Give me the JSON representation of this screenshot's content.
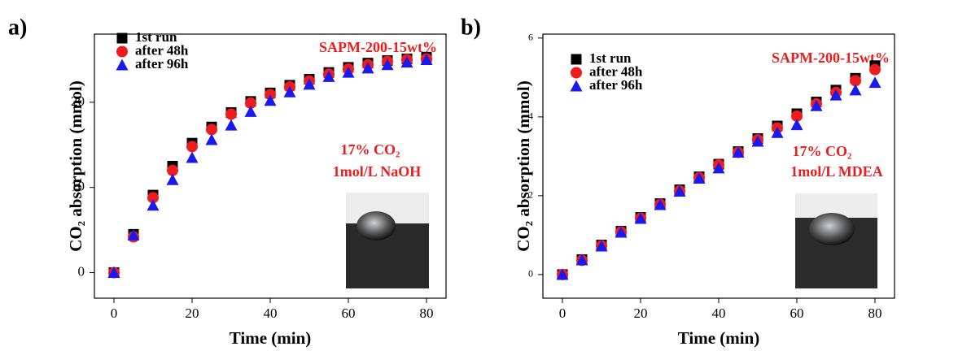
{
  "chart_data": [
    {
      "type": "scatter",
      "panel_label": "a)",
      "x": [
        0,
        5,
        10,
        15,
        20,
        25,
        30,
        35,
        40,
        45,
        50,
        55,
        60,
        65,
        70,
        75,
        80
      ],
      "xlim": [
        -5,
        85
      ],
      "xticks": [
        0,
        20,
        40,
        60,
        80
      ],
      "ylim": [
        -3,
        28
      ],
      "yticks": [
        0,
        10,
        20
      ],
      "x_label": "Time (min)",
      "y_label": "CO₂ absorption (mmol)",
      "annotations": [
        "SAPM-200-15wt%",
        "17% CO₂",
        "1mol/L NaOH"
      ],
      "series": [
        {
          "name": "1st  run",
          "color": "#000000",
          "marker": "square",
          "values": [
            0,
            4.5,
            9.1,
            12.5,
            15.2,
            17.1,
            18.8,
            20.1,
            21.1,
            22.0,
            22.7,
            23.5,
            24.1,
            24.6,
            24.9,
            25.1,
            25.3
          ]
        },
        {
          "name": "after  48h",
          "color": "#ee1c1c",
          "marker": "circle",
          "values": [
            0,
            4.2,
            8.8,
            12.0,
            14.8,
            16.8,
            18.6,
            19.9,
            20.9,
            21.8,
            22.5,
            23.3,
            23.9,
            24.4,
            24.8,
            25.0,
            25.1
          ]
        },
        {
          "name": "after  96h",
          "color": "#1a1aee",
          "marker": "triangle",
          "values": [
            0,
            4.4,
            7.9,
            10.9,
            13.5,
            15.6,
            17.3,
            18.9,
            20.2,
            21.2,
            22.1,
            23.0,
            23.5,
            24.0,
            24.4,
            24.7,
            25.0
          ]
        }
      ]
    },
    {
      "type": "scatter",
      "panel_label": "b)",
      "x": [
        0,
        5,
        10,
        15,
        20,
        25,
        30,
        35,
        40,
        45,
        50,
        55,
        60,
        65,
        70,
        75,
        80
      ],
      "xlim": [
        -5,
        85
      ],
      "xticks": [
        0,
        20,
        40,
        60,
        80
      ],
      "ylim": [
        -0.6,
        6.1
      ],
      "yticks": [
        0,
        2,
        4,
        6
      ],
      "x_label": "Time (min)",
      "y_label": "CO₂ absorption (mmol)",
      "annotations": [
        "SAPM-200-15wt%",
        "17% CO₂",
        "1mol/L MDEA"
      ],
      "series": [
        {
          "name": "1st  run",
          "color": "#000000",
          "marker": "square",
          "values": [
            0,
            0.38,
            0.75,
            1.1,
            1.45,
            1.8,
            2.15,
            2.48,
            2.8,
            3.12,
            3.45,
            3.77,
            4.08,
            4.38,
            4.68,
            4.98,
            5.3
          ]
        },
        {
          "name": "after  48h",
          "color": "#ee1c1c",
          "marker": "circle",
          "values": [
            0,
            0.36,
            0.73,
            1.08,
            1.43,
            1.78,
            2.12,
            2.46,
            2.78,
            3.1,
            3.42,
            3.72,
            4.02,
            4.33,
            4.62,
            4.92,
            5.2
          ]
        },
        {
          "name": "after  96h",
          "color": "#1a1aee",
          "marker": "triangle",
          "values": [
            0,
            0.37,
            0.72,
            1.07,
            1.42,
            1.77,
            2.11,
            2.44,
            2.7,
            3.1,
            3.38,
            3.6,
            3.8,
            4.28,
            4.55,
            4.68,
            4.87
          ]
        }
      ]
    }
  ]
}
